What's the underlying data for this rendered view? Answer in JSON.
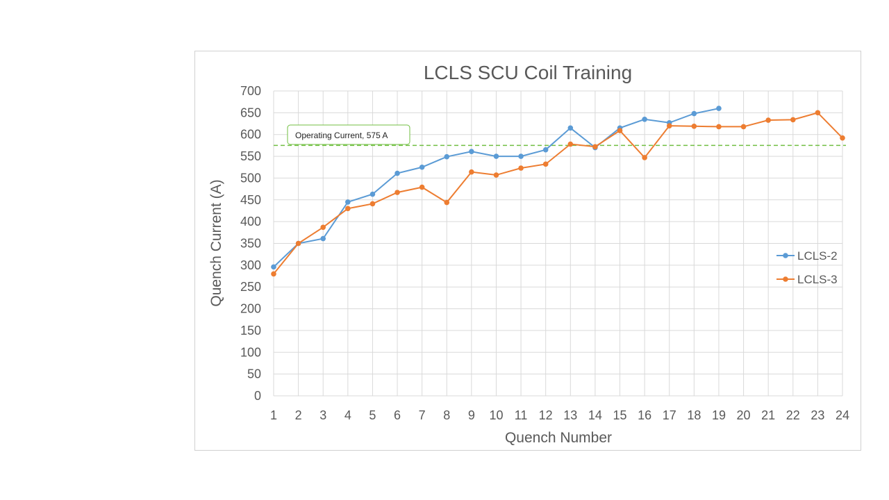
{
  "chart_data": {
    "type": "line",
    "title": "LCLS SCU Coil Training",
    "xlabel": "Quench Number",
    "ylabel": "Quench Current (A)",
    "x": [
      1,
      2,
      3,
      4,
      5,
      6,
      7,
      8,
      9,
      10,
      11,
      12,
      13,
      14,
      15,
      16,
      17,
      18,
      19,
      20,
      21,
      22,
      23,
      24
    ],
    "xlim": [
      1,
      24
    ],
    "ylim": [
      0,
      700
    ],
    "ytick_step": 50,
    "grid": true,
    "legend_position": "right",
    "series": [
      {
        "name": "LCLS-2",
        "color": "#5b9bd5",
        "x": [
          1,
          2,
          3,
          4,
          5,
          6,
          7,
          8,
          9,
          10,
          11,
          12,
          13,
          14,
          15,
          16,
          17,
          18,
          19
        ],
        "values": [
          296,
          350,
          361,
          445,
          463,
          511,
          525,
          549,
          561,
          550,
          550,
          565,
          615,
          570,
          615,
          635,
          627,
          648,
          660
        ]
      },
      {
        "name": "LCLS-3",
        "color": "#ed7d31",
        "x": [
          1,
          2,
          3,
          4,
          5,
          6,
          7,
          8,
          9,
          10,
          11,
          12,
          13,
          14,
          15,
          16,
          17,
          18,
          19,
          20,
          21,
          22,
          23,
          24
        ],
        "values": [
          280,
          350,
          387,
          430,
          441,
          467,
          479,
          444,
          514,
          507,
          523,
          532,
          578,
          572,
          609,
          547,
          620,
          619,
          618,
          618,
          633,
          634,
          650,
          592
        ]
      }
    ],
    "reference_line": {
      "value": 575,
      "label": "Operating Current, 575 A",
      "color": "#70bf41"
    }
  }
}
